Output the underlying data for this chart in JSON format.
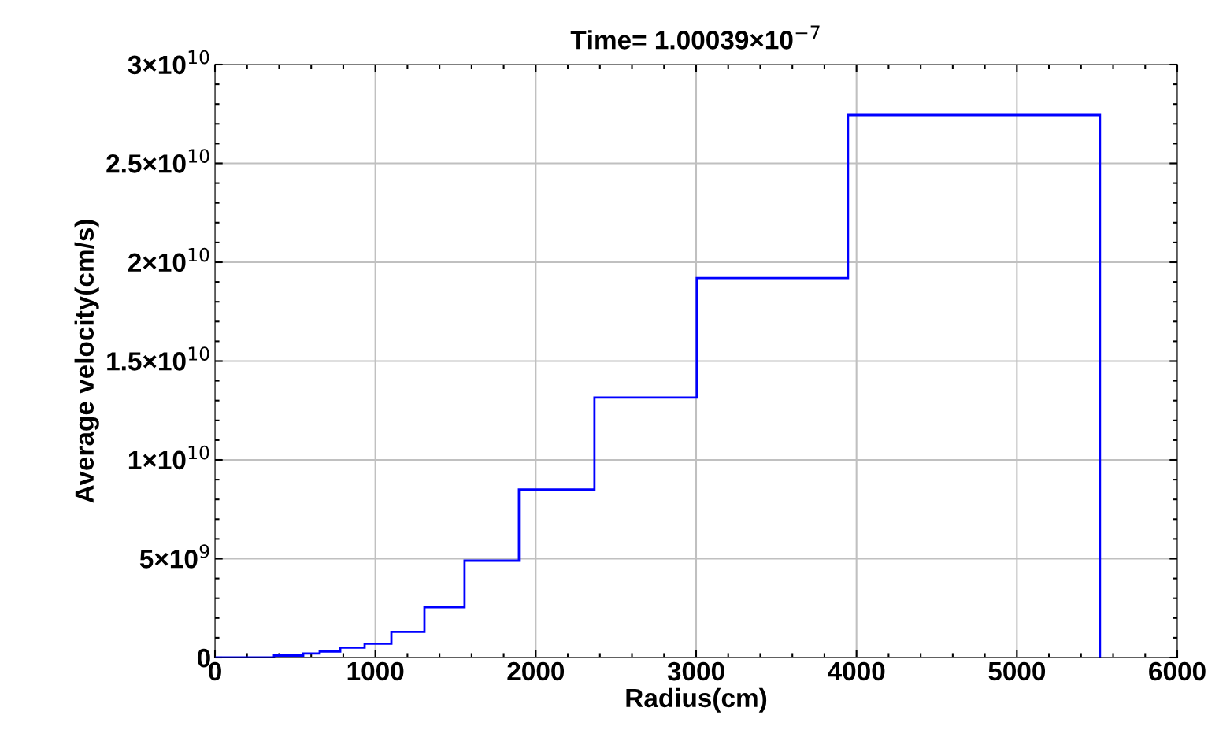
{
  "chart_data": {
    "type": "histogram",
    "title": "Time= 1.00039×10$^{−7}$",
    "xlabel": "Radius(cm)",
    "ylabel": "Average velocity(cm/s)",
    "bins": [
      0,
      368,
      452,
      550,
      653,
      781,
      933,
      1100,
      1306,
      1556,
      1895,
      2366,
      3004,
      3947,
      5518
    ],
    "values": [
      0,
      100000000,
      100000000,
      200000000,
      300000000,
      500000000,
      700000000,
      1300000000,
      2550000000,
      4900000000,
      8500000000,
      13150000000,
      19200000000,
      27450000000
    ],
    "color": "#0000ff",
    "xlim": [
      0,
      6000
    ],
    "xticks": [
      0,
      1000,
      2000,
      3000,
      4000,
      5000,
      6000
    ],
    "ylim": [
      0,
      30000000000
    ],
    "yticks": [
      0,
      {
        "value": 5000000000,
        "label": "5×10$^{9}$"
      },
      {
        "value": 10000000000,
        "label": "1×10$^{10}$"
      },
      {
        "value": 15000000000,
        "label": "1.5×10$^{10}$"
      },
      {
        "value": 20000000000,
        "label": "2×10$^{10}$"
      },
      {
        "value": 25000000000,
        "label": "2.5×10$^{10}$"
      },
      {
        "value": 30000000000,
        "label": "3×10$^{10}$"
      }
    ],
    "grid": true
  }
}
